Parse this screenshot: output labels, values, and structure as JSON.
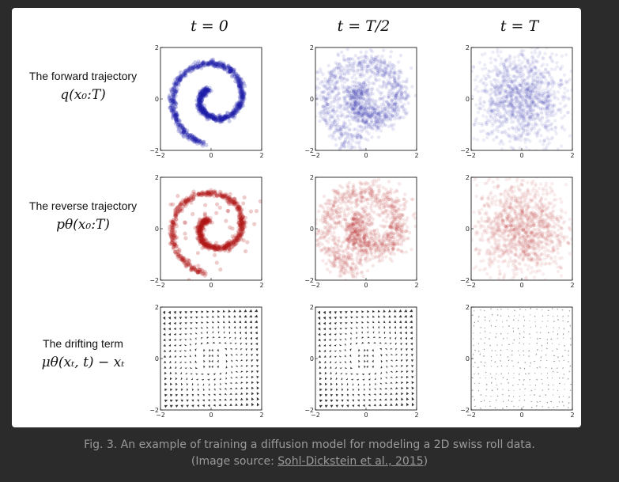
{
  "figure": {
    "column_headers": [
      "t = 0",
      "t = T/2",
      "t = T"
    ],
    "rows": [
      {
        "title": "The forward trajectory",
        "math": "q(x₀:T)",
        "color": "#1a1aa8"
      },
      {
        "title": "The reverse trajectory",
        "math": "pθ(x₀:T)",
        "color": "#b01818"
      },
      {
        "title": "The drifting term",
        "math": "μθ(xₜ, t) − xₜ",
        "color": "#111111"
      }
    ],
    "axis": {
      "ticks": [
        "−2",
        "0",
        "2"
      ],
      "range": [
        -2,
        2
      ]
    }
  },
  "caption": {
    "line1": "Fig. 3. An example of training a diffusion model for modeling a 2D swiss roll data.",
    "line2_prefix": "(Image source: ",
    "link_text": "Sohl-Dickstein et al., 2015",
    "line2_suffix": ")"
  }
}
